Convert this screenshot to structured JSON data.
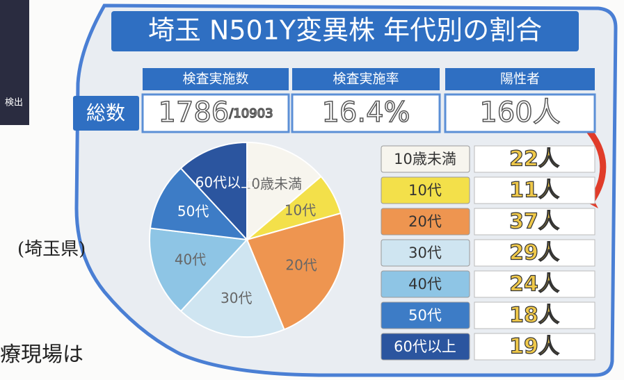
{
  "chart_data": {
    "type": "pie",
    "title": "埼玉 N501Y変異株 年代別の割合",
    "categories": [
      "10歳未満",
      "10代",
      "20代",
      "30代",
      "40代",
      "50代",
      "60代以上"
    ],
    "values": [
      22,
      11,
      37,
      29,
      24,
      18,
      19
    ],
    "value_labels": [
      "22人",
      "11人",
      "37人",
      "29人",
      "24人",
      "18人",
      "19人"
    ],
    "colors": [
      "#f7f5ee",
      "#f3e04a",
      "#ee9550",
      "#cfe5f1",
      "#8ec5e5",
      "#3d7cc6",
      "#2b559f"
    ]
  },
  "summary": {
    "row_label": "総数",
    "headers": [
      "検査実施数",
      "検査実施率",
      "陽性者"
    ],
    "values": [
      {
        "main": "1786",
        "sub": "/10903"
      },
      "16.4%",
      "160人"
    ]
  },
  "annotations": [
    "検出",
    "(埼玉県)",
    "療現場は"
  ]
}
